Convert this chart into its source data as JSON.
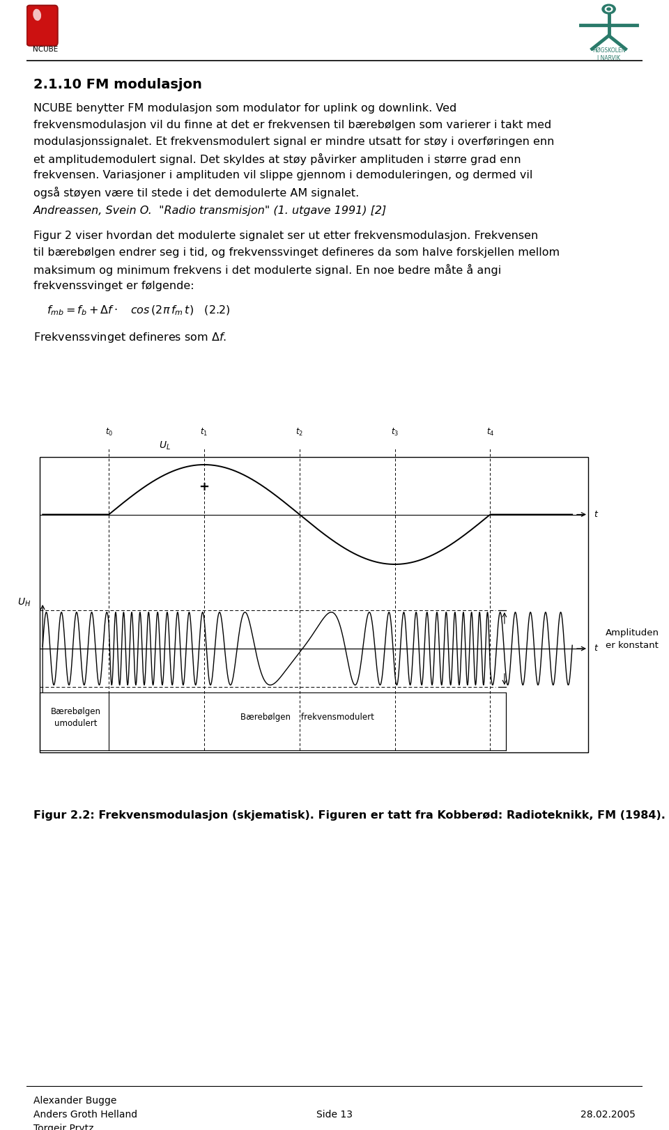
{
  "title": "2.1.10 FM modulasjon",
  "body_text_1": "NCUBE benytter FM modulasjon som modulator for uplink og downlink. Ved\nfrekvensmodulasjon vil du finne at det er frekvensen til bærebølgen som varierer i takt med\nmodulasjonssignalet. Et frekvensmodulert signal er mindre utsatt for støy i overføringen enn\net amplitudemodulert signal. Det skyldes at støy påvirker amplituden i større grad enn\nfrekvensen. Variasjoner i amplituden vil slippe gjennom i demoduleringen, og dermed vil\nogså støyen være til stede i det demodulerte AM signalet.",
  "citation": "Andreassen, Svein O.  \"Radio transmisjon\" (1. utgave 1991) [2]",
  "body_text_2": "Figur 2 viser hvordan det modulerte signalet ser ut etter frekvensmodulasjon. Frekvensen\ntil bærebølgen endrer seg i tid, og frekvenssvinget defineres da som halve forskjellen mellom\nmaksimum og minimum frekvens i det modulerte signal. En noe bedre måte å angi\nfrekvenssvinget er følgende:",
  "formula": "$f_{mb} = f_b + \\Delta f \\cdot \\quad cos\\,(2\\pi\\, f_m\\, t) \\quad (2.2)$",
  "freq_def": "Frekvenssvinget defineres som $\\Delta f$.",
  "figure_caption": "Figur 2.2: Frekvensmodulasjon (skjematisk). Figuren er tatt fra Kobberød: Radioteknikk, FM (1984).",
  "footer_left": "Alexander Bugge\nAnders Groth Helland\nTorgeir Prytz",
  "footer_center": "Side 13",
  "footer_right": "28.02.2005",
  "bg_color": "#ffffff",
  "text_color": "#000000",
  "body_fontsize": 11.5,
  "title_fontsize": 14
}
